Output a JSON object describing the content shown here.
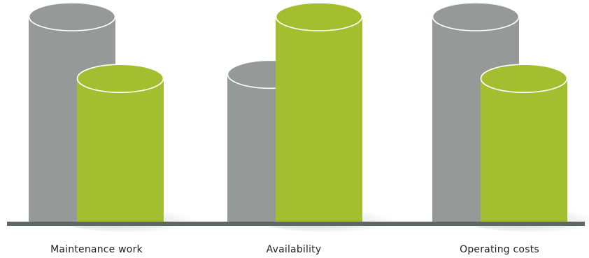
{
  "chart_data": {
    "type": "bar",
    "categories": [
      "Maintenance work",
      "Availability",
      "Operating costs"
    ],
    "series": [
      {
        "values": [
          100,
          72,
          100
        ]
      },
      {
        "values": [
          70,
          100,
          70
        ]
      }
    ],
    "ylim": [
      0,
      100
    ],
    "grid": false,
    "legend": "none",
    "colors": {
      "series_gray": "#959a99",
      "series_green": "#a3bf30",
      "baseline": "#5c6766"
    }
  }
}
